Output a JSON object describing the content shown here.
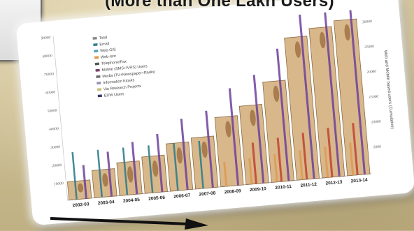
{
  "headline": "(More than One Lakh Users)",
  "colors": {
    "bar_fill": "#d8b78a",
    "bar_stroke": "#8b6a45",
    "tall_line": "#6d3f9a",
    "email": "#2f7d8c",
    "web": "#e0954a",
    "red": "#c0392b"
  },
  "chart_data": {
    "type": "bar",
    "categories": [
      "2002-03",
      "2003-04",
      "2004-05",
      "2005-06",
      "2006-07",
      "2007-08",
      "2008-09",
      "2009-10",
      "2010-11",
      "2011-12",
      "2012-13",
      "2013-14"
    ],
    "series": [
      {
        "name": "Total",
        "values": [
          10000,
          15000,
          18000,
          20000,
          26000,
          28000,
          38000,
          43000,
          55000,
          78000,
          82000,
          85000
        ]
      }
    ],
    "legend": [
      "Total",
      "Email",
      "Web-GIS",
      "Web-Isor",
      "Telephone/Fax",
      "Mobile (SMS+IVRS) Users",
      "Media (TV+Newspaper+Radio)",
      "Information Kiosks",
      "Via Research Projects",
      "EDW Users"
    ],
    "yticks_left": [
      "10000",
      "20000",
      "30000",
      "40000",
      "50000",
      "60000",
      "70000",
      "80000",
      "90000"
    ],
    "yticks_right": [
      "5000",
      "10000",
      "15000",
      "20000",
      "25000",
      "30000"
    ],
    "ylabel_right": "Web and Mobile based users (Cumulative)",
    "ylim": [
      0,
      90000
    ],
    "legend_position": "top-left",
    "grid": false
  }
}
